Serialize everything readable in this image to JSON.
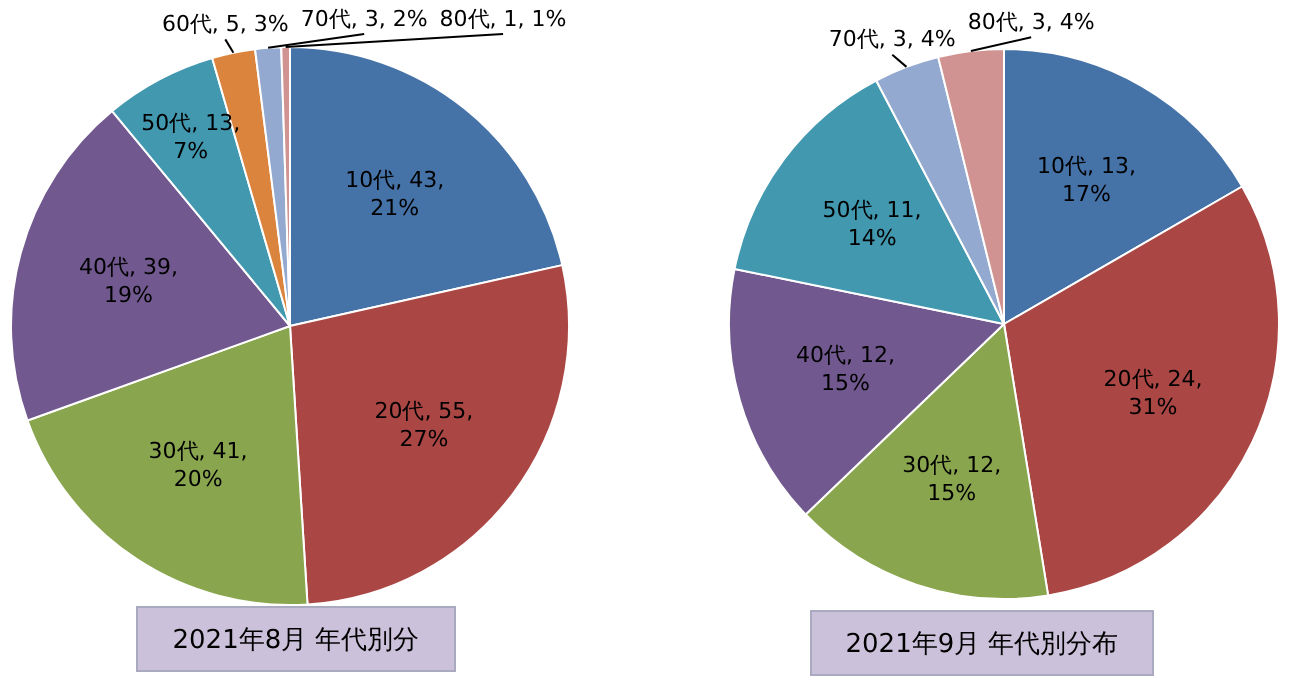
{
  "chart_data": [
    {
      "type": "pie",
      "title": "2021年8月 年代別分",
      "categories": [
        "10代",
        "20代",
        "30代",
        "40代",
        "50代",
        "60代",
        "70代",
        "80代"
      ],
      "values": [
        43,
        55,
        41,
        39,
        13,
        5,
        3,
        1
      ],
      "colors": [
        "#4572a7",
        "#aa4643",
        "#89a54e",
        "#71588f",
        "#4198af",
        "#db843d",
        "#93a9cf",
        "#d19392"
      ],
      "value_labels": [
        ", 43, 21%",
        ", 55, 27%",
        ", 41, 20%",
        ", 39, 19%",
        ", 13, 7%",
        ", 5, 3%",
        ", 3, 2%",
        ", 1, 1%"
      ],
      "legend": false
    },
    {
      "type": "pie",
      "title": "2021年9月 年代別分布",
      "categories": [
        "10代",
        "20代",
        "30代",
        "40代",
        "50代",
        "70代",
        "80代"
      ],
      "values": [
        13,
        24,
        12,
        12,
        11,
        3,
        3
      ],
      "colors": [
        "#4572a7",
        "#aa4643",
        "#89a54e",
        "#71588f",
        "#4198af",
        "#93a9cf",
        "#d19392"
      ],
      "value_labels": [
        ", 13, 17%",
        ", 24, 31%",
        ", 12, 15%",
        ", 12, 15%",
        ", 11, 14%",
        ", 3, 4%",
        ", 3, 4%"
      ],
      "legend": false
    }
  ]
}
